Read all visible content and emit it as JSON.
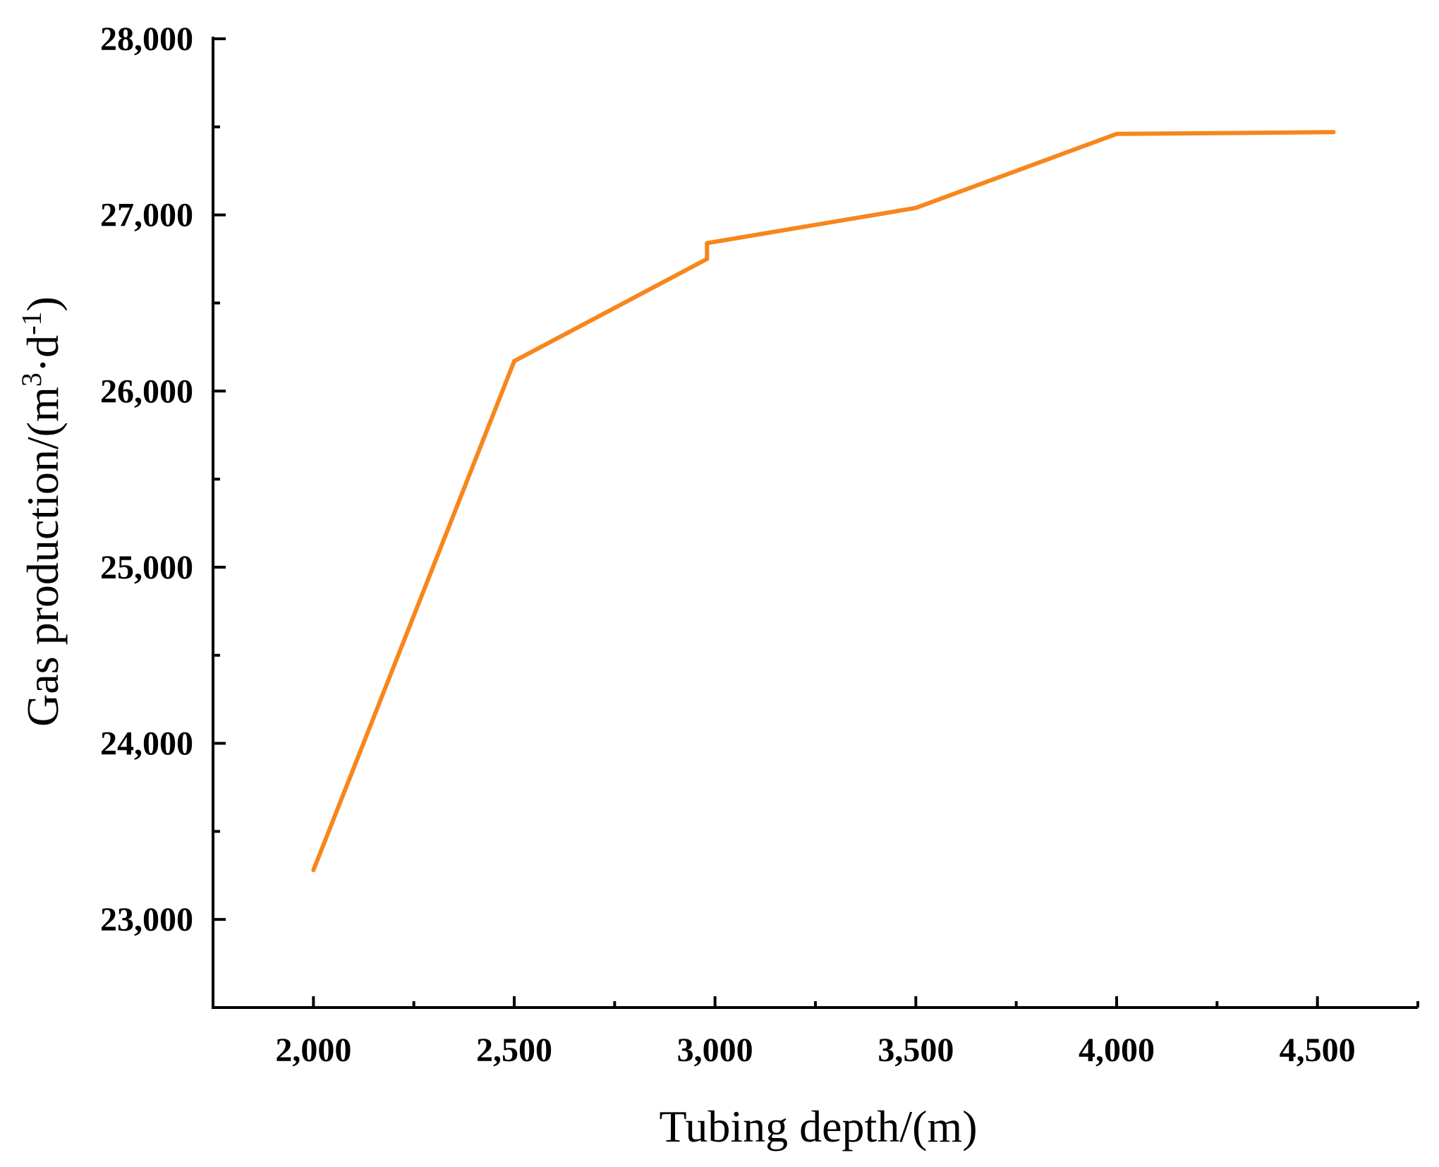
{
  "chart_data": {
    "type": "line",
    "title": "",
    "xlabel": "Tubing depth/(m)",
    "ylabel_main": "Gas production/(m",
    "ylabel_sup1": "3",
    "ylabel_mid": "·d",
    "ylabel_sup2": "-1",
    "ylabel_end": ")",
    "xlim": [
      1750,
      4750
    ],
    "ylim": [
      22500,
      28000
    ],
    "x_ticks": [
      2000,
      2500,
      3000,
      3500,
      4000,
      4500
    ],
    "x_tick_labels": [
      "2,000",
      "2,500",
      "3,000",
      "3,500",
      "4,000",
      "4,500"
    ],
    "y_ticks": [
      23000,
      24000,
      25000,
      26000,
      27000,
      28000
    ],
    "y_tick_labels": [
      "23,000",
      "24,000",
      "25,000",
      "26,000",
      "27,000",
      "28,000"
    ],
    "grid": false,
    "series": [
      {
        "color": "#f7861c",
        "x": [
          2000,
          2500,
          2980,
          2980,
          3500,
          4000,
          4540
        ],
        "y": [
          23280,
          26170,
          26750,
          26840,
          27040,
          27460,
          27470
        ]
      }
    ]
  }
}
